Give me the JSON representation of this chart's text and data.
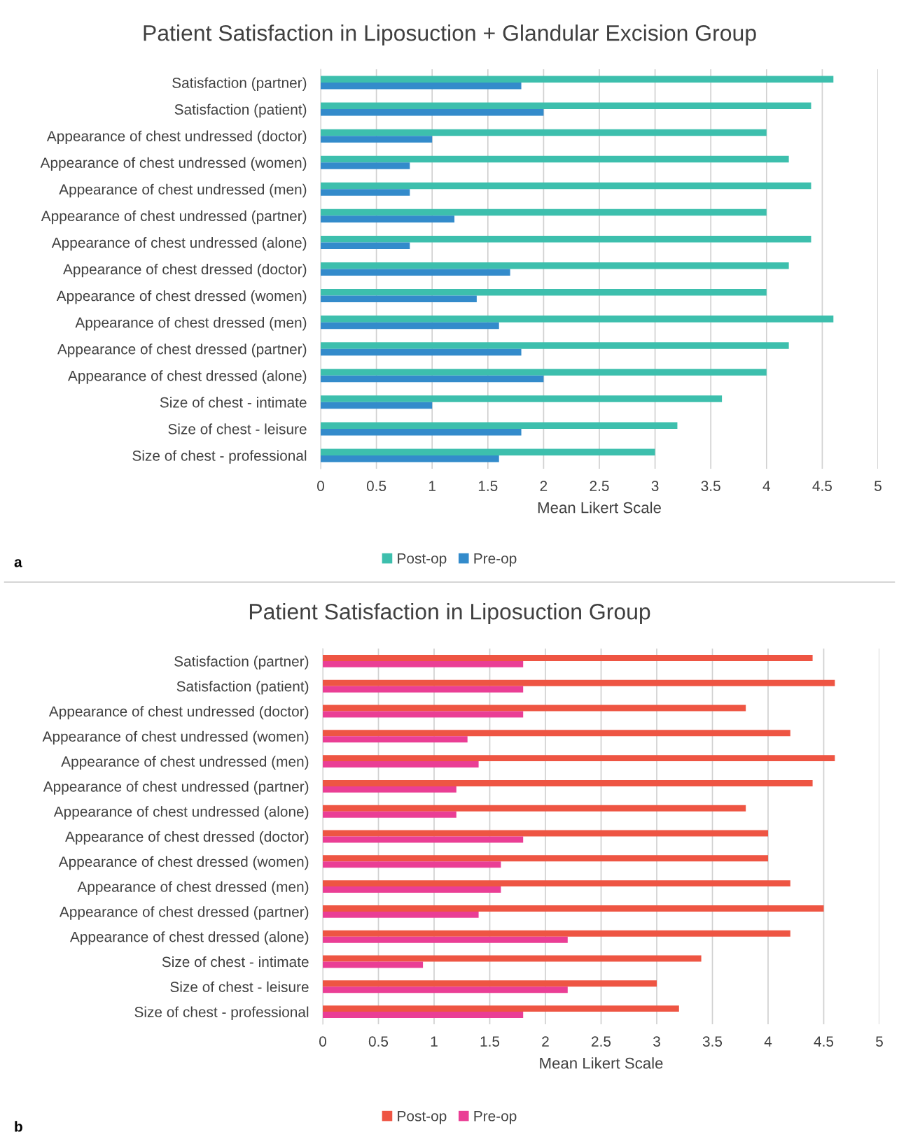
{
  "chart_data": [
    {
      "type": "bar",
      "orientation": "horizontal",
      "title": "Patient Satisfaction in Liposuction + Glandular Excision Group",
      "xlabel": "Mean Likert Scale",
      "categories": [
        "Satisfaction (partner)",
        "Satisfaction (patient)",
        "Appearance of chest undressed (doctor)",
        "Appearance of chest undressed (women)",
        "Appearance of chest undressed (men)",
        "Appearance of chest undressed (partner)",
        "Appearance of chest undressed (alone)",
        "Appearance of chest dressed (doctor)",
        "Appearance of chest dressed (women)",
        "Appearance of chest dressed (men)",
        "Appearance of chest dressed (partner)",
        "Appearance of chest dressed (alone)",
        "Size of chest - intimate",
        "Size of chest - leisure",
        "Size of chest - professional"
      ],
      "series": [
        {
          "name": "Post-op",
          "color": "#3dbfad",
          "values": [
            4.6,
            4.4,
            4.0,
            4.2,
            4.4,
            4.0,
            4.4,
            4.2,
            4.0,
            4.6,
            4.2,
            4.0,
            3.6,
            3.2,
            3.0
          ]
        },
        {
          "name": "Pre-op",
          "color": "#338bcb",
          "values": [
            1.8,
            2.0,
            1.0,
            0.8,
            0.8,
            1.2,
            0.8,
            1.7,
            1.4,
            1.6,
            1.8,
            2.0,
            1.0,
            1.8,
            1.6
          ]
        }
      ],
      "xlim": [
        0,
        5
      ],
      "xticks": [
        0,
        0.5,
        1,
        1.5,
        2,
        2.5,
        3,
        3.5,
        4,
        4.5,
        5
      ],
      "grid": "x",
      "legend": "bottom",
      "annotations": [
        "a"
      ]
    },
    {
      "type": "bar",
      "orientation": "horizontal",
      "title": "Patient Satisfaction in Liposuction Group",
      "xlabel": "Mean Likert Scale",
      "categories": [
        "Satisfaction (partner)",
        "Satisfaction (patient)",
        "Appearance of chest undressed (doctor)",
        "Appearance of chest undressed (women)",
        "Appearance of chest undressed (men)",
        "Appearance of chest undressed (partner)",
        "Appearance of chest undressed (alone)",
        "Appearance of chest dressed (doctor)",
        "Appearance of chest dressed (women)",
        "Appearance of chest dressed (men)",
        "Appearance of chest dressed (partner)",
        "Appearance of chest dressed (alone)",
        "Size of chest - intimate",
        "Size of chest - leisure",
        "Size of chest - professional"
      ],
      "series": [
        {
          "name": "Post-op",
          "color": "#ee5543",
          "values": [
            4.4,
            4.6,
            3.8,
            4.2,
            4.6,
            4.4,
            3.8,
            4.0,
            4.0,
            4.2,
            4.5,
            4.2,
            3.4,
            3.0,
            3.2
          ]
        },
        {
          "name": "Pre-op",
          "color": "#ea3e95",
          "values": [
            1.8,
            1.8,
            1.8,
            1.3,
            1.4,
            1.2,
            1.2,
            1.8,
            1.6,
            1.6,
            1.4,
            2.2,
            0.9,
            2.2,
            1.8
          ]
        }
      ],
      "xlim": [
        0,
        5
      ],
      "xticks": [
        0,
        0.5,
        1,
        1.5,
        2,
        2.5,
        3,
        3.5,
        4,
        4.5,
        5
      ],
      "grid": "x",
      "legend": "bottom",
      "annotations": [
        "b"
      ]
    }
  ]
}
